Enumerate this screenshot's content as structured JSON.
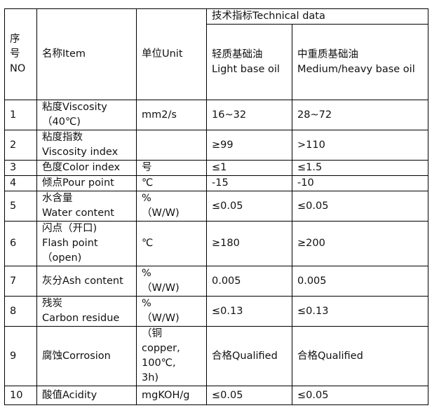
{
  "header": {
    "no": "序\n号\nNO",
    "item": "名称Item",
    "unit": "单位Unit",
    "technical": "技术指标Technical data",
    "light": "轻质基础油\nLight base oil",
    "medium": "中重质基础油\nMedium/heavy base oil"
  },
  "rows": [
    {
      "no": "1",
      "item": "粘度Viscosity\n（40℃)",
      "unit": "mm2/s",
      "light": " 16~32",
      "medium": " 28~72"
    },
    {
      "no": "2",
      "item": "粘度指数\nViscosity index",
      "unit": "",
      "light": " ≥99",
      "medium": " >110"
    },
    {
      "no": "3",
      "item": "色度Color index",
      "unit": "号",
      "light": " ≤1",
      "medium": " ≤1.5"
    },
    {
      "no": "4",
      "item": "倾点Pour point",
      "unit": " ℃",
      "light": " -15",
      "medium": " -10"
    },
    {
      "no": "5",
      "item": "水含量\nWater content",
      "unit": "%\n（W/W)",
      "light": " ≤0.05",
      "medium": " ≤0.05"
    },
    {
      "no": "6",
      "item": "闪点（开口)\nFlash point\n（open)",
      "unit": "℃",
      "light": " ≥180",
      "medium": " ≥200"
    },
    {
      "no": "7",
      "item": "灰分Ash content",
      "unit": "%\n（W/W)",
      "light": " 0.005",
      "medium": " 0.005"
    },
    {
      "no": "8",
      "item": "残炭\nCarbon residue",
      "unit": "%\n（W/W)",
      "light": " ≤0.13",
      "medium": " ≤0.13"
    },
    {
      "no": "9",
      "item": "腐蚀Corrosion",
      "unit": "（铜\ncopper,\n100℃,\n3h)",
      "light": "合格Qualified",
      "medium": "合格Qualified"
    },
    {
      "no": "10",
      "item": "酸值Acidity",
      "unit": "mgKOH/g",
      "light": "≤0.05",
      "medium": "≤0.05"
    }
  ]
}
